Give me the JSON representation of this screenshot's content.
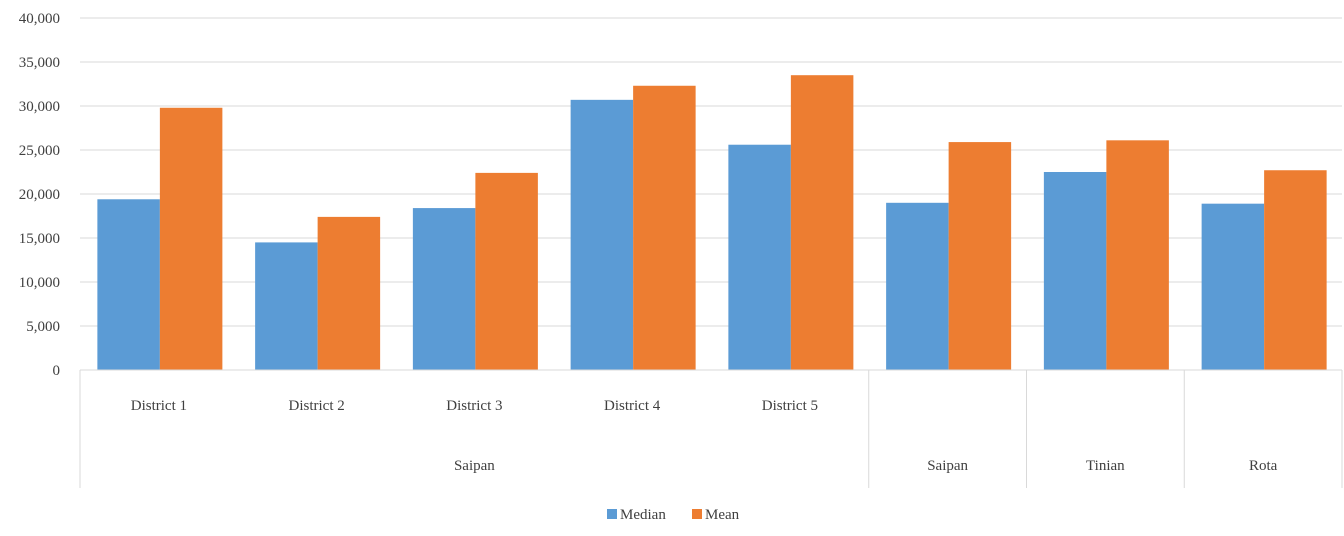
{
  "chart_data": {
    "type": "bar",
    "title": "",
    "xlabel": "",
    "ylabel": "",
    "ylim": [
      0,
      40000
    ],
    "yticks": [
      0,
      5000,
      10000,
      15000,
      20000,
      25000,
      30000,
      35000,
      40000
    ],
    "ytick_labels": [
      "0",
      "5,000",
      "10,000",
      "15,000",
      "20,000",
      "25,000",
      "30,000",
      "35,000",
      "40,000"
    ],
    "grid": true,
    "legend_position": "bottom",
    "categories": [
      "District 1",
      "District 2",
      "District 3",
      "District 4",
      "District 5",
      "Saipan",
      "Tinian",
      "Rota"
    ],
    "groups": [
      {
        "label": "Saipan",
        "categories": [
          "District 1",
          "District 2",
          "District 3",
          "District 4",
          "District 5"
        ]
      },
      {
        "label": "Saipan",
        "categories": [
          ""
        ]
      },
      {
        "label": "Tinian",
        "categories": [
          ""
        ]
      },
      {
        "label": "Rota",
        "categories": [
          ""
        ]
      }
    ],
    "category_labels": [
      "District 1",
      "District 2",
      "District 3",
      "District 4",
      "District 5",
      "",
      "",
      ""
    ],
    "series": [
      {
        "name": "Median",
        "color": "#5B9BD5",
        "values": [
          19400,
          14500,
          18400,
          30700,
          25600,
          19000,
          22500,
          18900
        ]
      },
      {
        "name": "Mean",
        "color": "#ED7D31",
        "values": [
          29800,
          17400,
          22400,
          32300,
          33500,
          25900,
          26100,
          22700
        ]
      }
    ]
  }
}
